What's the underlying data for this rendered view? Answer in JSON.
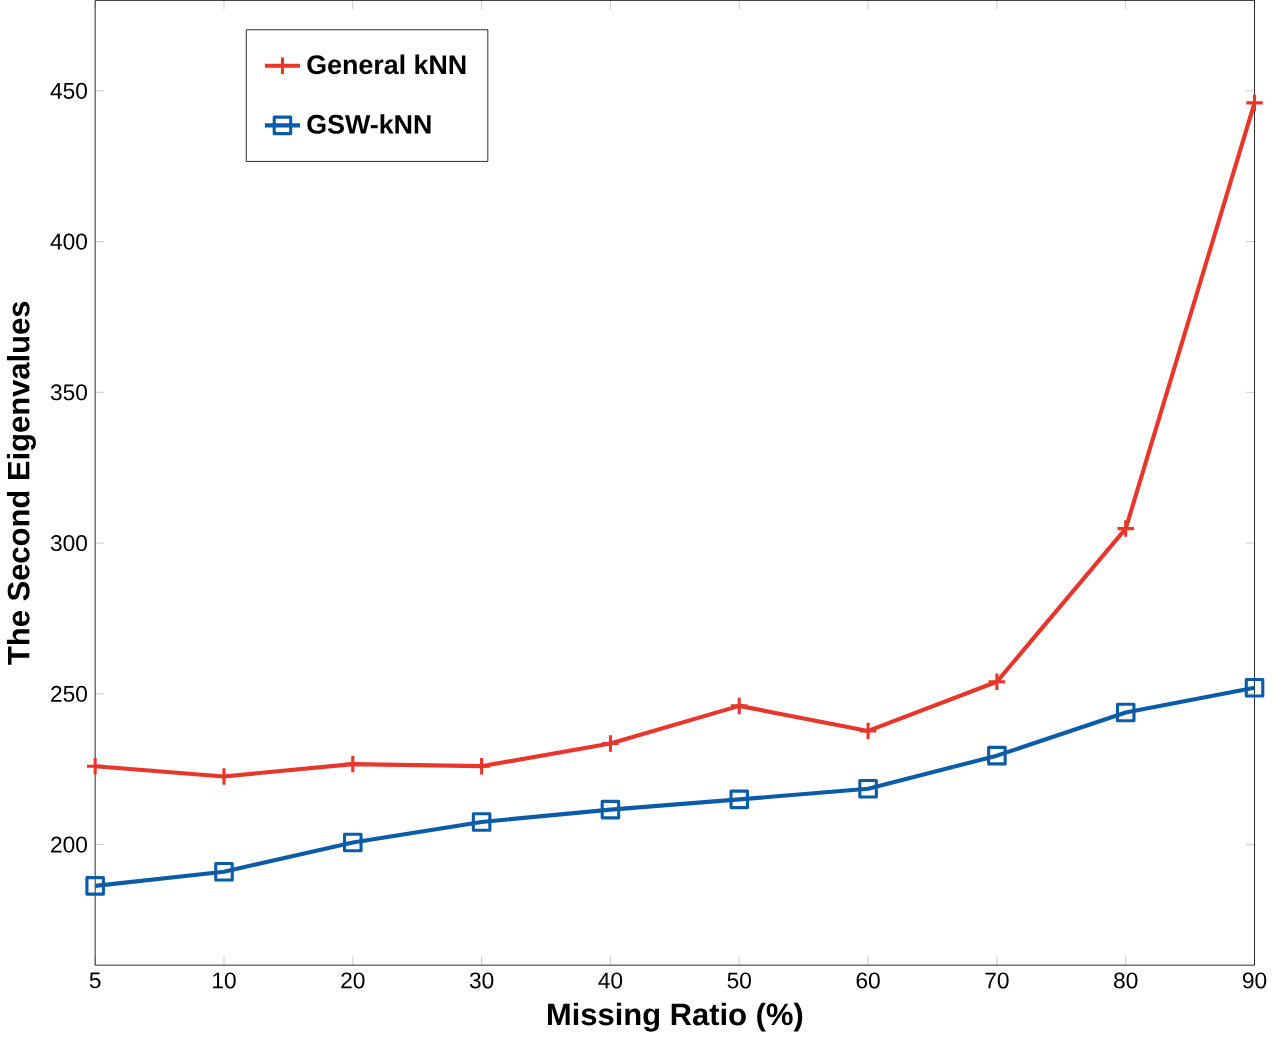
{
  "chart_data": {
    "type": "line",
    "xlabel": "Missing Ratio (%)",
    "ylabel": "The Second Eigenvalues",
    "categories": [
      "5",
      "10",
      "20",
      "30",
      "40",
      "50",
      "60",
      "70",
      "80",
      "90"
    ],
    "ylim": [
      160,
      480
    ],
    "yticks": [
      200,
      250,
      300,
      350,
      400,
      450
    ],
    "legend": "top left",
    "grid": false,
    "series": [
      {
        "name": "General kNN",
        "color": "#e8362b",
        "marker": "cross",
        "values": [
          226,
          222.6,
          226.7,
          226,
          233.5,
          246,
          237.7,
          254,
          304.8,
          446
        ]
      },
      {
        "name": "GSW-kNN",
        "color": "#0b5ca8",
        "marker": "square",
        "values": [
          186.3,
          191,
          200.7,
          207.5,
          211.6,
          215,
          218.5,
          229.5,
          243.8,
          252
        ]
      }
    ]
  }
}
